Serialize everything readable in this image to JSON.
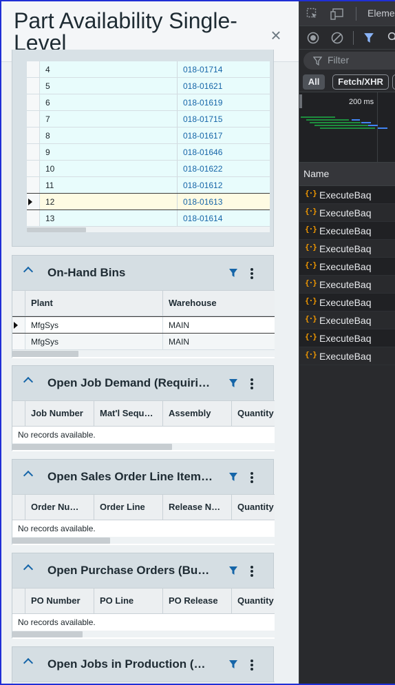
{
  "panel": {
    "title": "Part Availability Single-Level",
    "close_label": "×"
  },
  "part_table": {
    "rows": [
      {
        "seq": "4",
        "part": "018-01714"
      },
      {
        "seq": "5",
        "part": "018-01621"
      },
      {
        "seq": "6",
        "part": "018-01619"
      },
      {
        "seq": "7",
        "part": "018-01715"
      },
      {
        "seq": "8",
        "part": "018-01617"
      },
      {
        "seq": "9",
        "part": "018-01646"
      },
      {
        "seq": "10",
        "part": "018-01622"
      },
      {
        "seq": "11",
        "part": "018-01612"
      },
      {
        "seq": "12",
        "part": "018-01613"
      },
      {
        "seq": "13",
        "part": "018-01614"
      }
    ],
    "selected_row": "12"
  },
  "onhand": {
    "title": "On-Hand Bins",
    "columns": [
      "Plant",
      "Warehouse"
    ],
    "rows": [
      [
        "MfgSys",
        "MAIN"
      ],
      [
        "MfgSys",
        "MAIN"
      ]
    ]
  },
  "job_demand": {
    "title": "Open Job Demand (Requiri…",
    "columns": [
      "Job Number",
      "Mat'l Sequ…",
      "Assembly",
      "Quantity"
    ],
    "empty": "No records available."
  },
  "sales_orders": {
    "title": "Open Sales Order Line Item…",
    "columns": [
      "Order Nu…",
      "Order Line",
      "Release N…",
      "Quantity"
    ],
    "empty": "No records available."
  },
  "purchase_orders": {
    "title": "Open Purchase Orders (Buy…",
    "columns": [
      "PO Number",
      "PO Line",
      "PO Release",
      "Quantity"
    ],
    "empty": "No records available."
  },
  "jobs_production": {
    "title": "Open Jobs in Production (M…"
  },
  "devtools": {
    "tab_elements": "Eleme",
    "filter_placeholder": "Filter",
    "type_all": "All",
    "type_fetch": "Fetch/XHR",
    "timeline_label": "200 ms",
    "column_name": "Name",
    "requests": [
      "ExecuteBaq",
      "ExecuteBaq",
      "ExecuteBaq",
      "ExecuteBaq",
      "ExecuteBaq",
      "ExecuteBaq",
      "ExecuteBaq",
      "ExecuteBaq",
      "ExecuteBaq",
      "ExecuteBaq"
    ],
    "request_badge": "{·}"
  },
  "colors": {
    "accent": "#1565a8",
    "row_bg": "#e8fcfc",
    "selected_bg": "#fefbe3",
    "devtools_bg": "#292a2d",
    "filter_active": "#8ab4f8"
  }
}
